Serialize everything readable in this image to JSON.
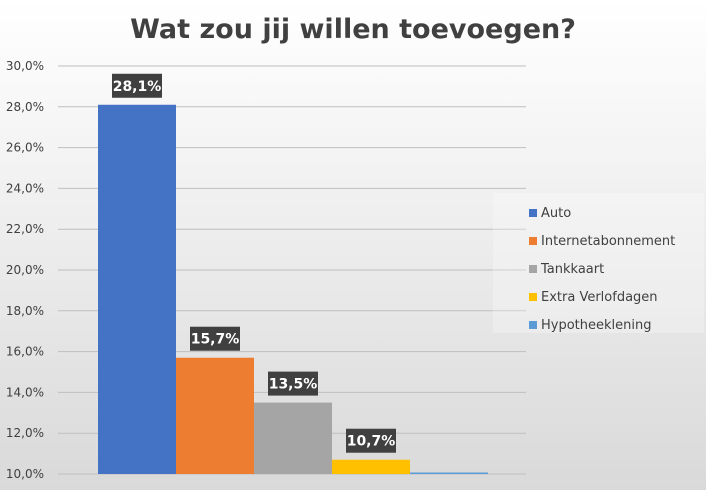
{
  "chart_data": {
    "type": "bar",
    "title": "Wat zou jij willen toevoegen?",
    "xlabel": "",
    "ylabel": "",
    "ylim": [
      10,
      30
    ],
    "yticks": [
      "10,0%",
      "12,0%",
      "14,0%",
      "16,0%",
      "18,0%",
      "20,0%",
      "22,0%",
      "24,0%",
      "26,0%",
      "28,0%",
      "30,0%"
    ],
    "grid": true,
    "legend_position": "right",
    "series": [
      {
        "name": "Auto",
        "value": 28.1,
        "label": "28,1%",
        "color": "#4472C4"
      },
      {
        "name": "Internetabonnement",
        "value": 15.7,
        "label": "15,7%",
        "color": "#ED7D31"
      },
      {
        "name": "Tankkaart",
        "value": 13.5,
        "label": "13,5%",
        "color": "#A5A5A5"
      },
      {
        "name": "Extra Verlofdagen",
        "value": 10.7,
        "label": "10,7%",
        "color": "#FFC000"
      },
      {
        "name": "Hypotheeklening",
        "value": 10.0,
        "label": "",
        "color": "#5B9BD5"
      }
    ]
  }
}
